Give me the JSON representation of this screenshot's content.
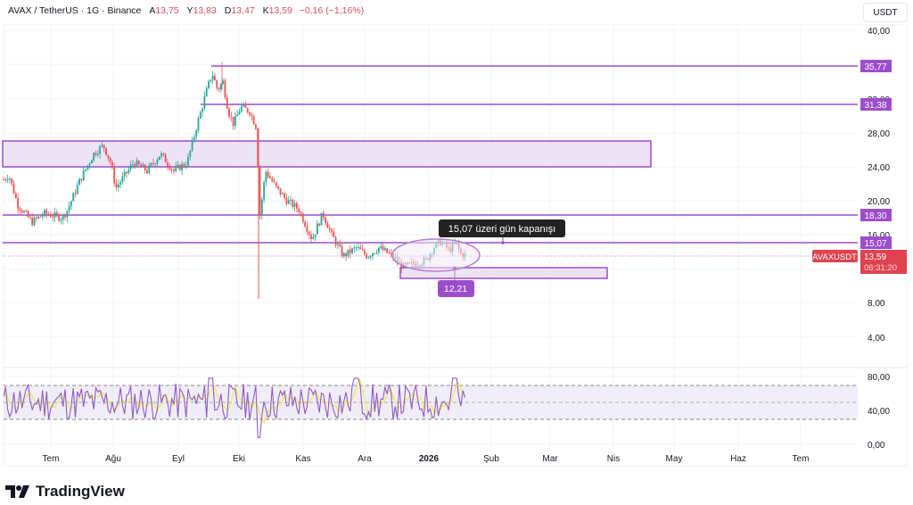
{
  "header": {
    "symbol": "AVAX / TetherUS · 1G · Binance",
    "open_label": "A",
    "open": "13,75",
    "high_label": "Y",
    "high": "13,83",
    "low_label": "D",
    "low": "13,47",
    "close_label": "K",
    "close": "13,59",
    "change": "−0,16 (−1,16%)"
  },
  "price_axis": {
    "unit_button": "USDT",
    "ticks": [
      "40,00",
      "32,00",
      "28,00",
      "24,00",
      "20,00",
      "16,00",
      "8,00",
      "4,00"
    ]
  },
  "rsi_axis": {
    "ticks": [
      "80,00",
      "40,00",
      "0,00"
    ]
  },
  "time_axis": {
    "ticks": [
      "Tem",
      "Ağu",
      "Eyl",
      "Eki",
      "Kas",
      "Ara",
      "2026",
      "Şub",
      "Mar",
      "Nis",
      "May",
      "Haz",
      "Tem"
    ]
  },
  "levels": {
    "l1": "35,77",
    "l2": "31,38",
    "l3": "18,30",
    "l4": "15,07",
    "support": "12,21"
  },
  "current_price": {
    "symbol_tag": "AVAXUSDT",
    "price": "13,59",
    "countdown": "06:31:20"
  },
  "annotation": {
    "callout": "15,07 üzeri gün kapanışı"
  },
  "branding": {
    "name": "TradingView"
  },
  "colors": {
    "up": "#26a69a",
    "down": "#ef5350",
    "level": "#9c4dcc",
    "zone_fill": "#ede3f6",
    "rsi_line": "#8e5cc6",
    "rsi_ma": "#f2e94e",
    "price_label": "#e0424f"
  },
  "chart_data": {
    "type": "candlestick",
    "title": "AVAX / TetherUS · 1G · Binance",
    "ohlc_last": {
      "open": 13.75,
      "high": 13.83,
      "low": 13.47,
      "close": 13.59,
      "change": -0.16,
      "change_pct": -1.16
    },
    "ylim": [
      0,
      40
    ],
    "y_ticks": [
      4,
      8,
      16,
      20,
      24,
      28,
      32,
      40
    ],
    "x_ticks": [
      "Tem",
      "Ağu",
      "Eyl",
      "Eki",
      "Kas",
      "Ara",
      "2026",
      "Şub",
      "Mar",
      "Nis",
      "May",
      "Haz",
      "Tem"
    ],
    "approx_monthly_path": [
      {
        "month": "Haz(end)",
        "price": 22.5
      },
      {
        "month": "Tem",
        "price": 18.0
      },
      {
        "month": "Ağu",
        "price": 24.5
      },
      {
        "month": "Eyl",
        "price": 23.5
      },
      {
        "month": "Eyl(late)",
        "price": 35.0
      },
      {
        "month": "Eki",
        "price": 30.0
      },
      {
        "month": "Eki(crash)",
        "price": 22.0
      },
      {
        "month": "Kas",
        "price": 18.0
      },
      {
        "month": "Ara",
        "price": 14.0
      },
      {
        "month": "Ara(late)",
        "price": 12.3
      },
      {
        "month": "2026",
        "price": 14.8
      },
      {
        "month": "Oca(mid)",
        "price": 13.59
      }
    ],
    "horizontal_levels": [
      35.77,
      31.38,
      18.3,
      15.07,
      12.21
    ],
    "zones": [
      {
        "top": 27.0,
        "bottom": 24.0
      },
      {
        "top": 12.6,
        "bottom": 11.5
      }
    ],
    "annotations": [
      "15,07 üzeri gün kapanışı",
      "12,21"
    ],
    "indicator": {
      "name": "RSI",
      "ylim": [
        0,
        100
      ],
      "y_ticks": [
        0,
        40,
        80
      ],
      "band": [
        30,
        70
      ],
      "mid": 50,
      "last_approx": 48
    }
  }
}
